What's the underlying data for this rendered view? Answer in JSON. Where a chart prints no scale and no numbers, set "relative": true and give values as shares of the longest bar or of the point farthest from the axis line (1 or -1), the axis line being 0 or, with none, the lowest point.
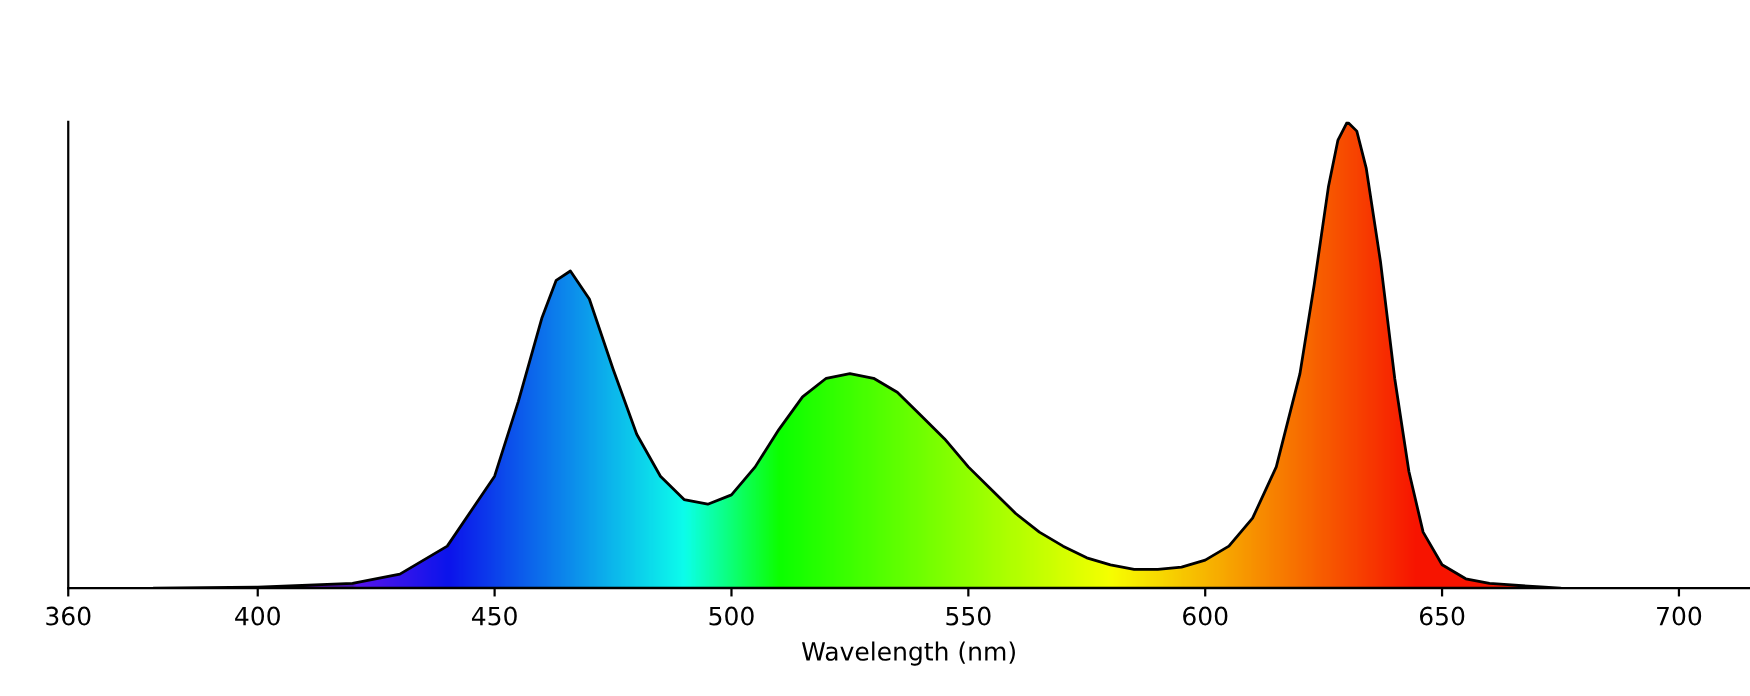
{
  "chart_data": {
    "type": "area",
    "xlabel": "Wavelength (nm)",
    "relative": true,
    "xlim": [
      360,
      715
    ],
    "xticks": [
      360,
      400,
      450,
      500,
      550,
      600,
      650,
      700
    ],
    "grid": false,
    "legend": false,
    "series": [
      {
        "color": "#000000",
        "x": [
          378,
          400,
          420,
          430,
          440,
          450,
          455,
          460,
          463,
          466,
          470,
          475,
          480,
          485,
          490,
          495,
          500,
          505,
          510,
          515,
          520,
          525,
          530,
          535,
          540,
          545,
          550,
          555,
          560,
          565,
          570,
          575,
          580,
          585,
          590,
          595,
          600,
          605,
          610,
          615,
          620,
          623,
          626,
          628,
          630,
          632,
          634,
          637,
          640,
          643,
          646,
          650,
          655,
          660,
          670,
          675
        ],
        "values": [
          0,
          0.002,
          0.01,
          0.03,
          0.09,
          0.24,
          0.4,
          0.58,
          0.66,
          0.68,
          0.62,
          0.47,
          0.33,
          0.24,
          0.19,
          0.18,
          0.2,
          0.26,
          0.34,
          0.41,
          0.45,
          0.46,
          0.45,
          0.42,
          0.37,
          0.32,
          0.26,
          0.21,
          0.16,
          0.12,
          0.09,
          0.065,
          0.05,
          0.04,
          0.04,
          0.045,
          0.06,
          0.09,
          0.15,
          0.26,
          0.46,
          0.65,
          0.86,
          0.96,
          1.0,
          0.98,
          0.9,
          0.7,
          0.45,
          0.25,
          0.12,
          0.05,
          0.02,
          0.01,
          0.003,
          0
        ]
      }
    ]
  }
}
